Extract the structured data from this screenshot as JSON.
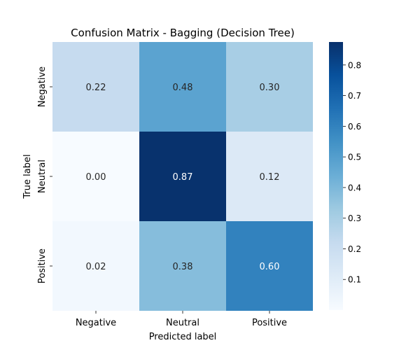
{
  "chart_data": {
    "type": "heatmap",
    "title": "Confusion Matrix - Bagging (Decision Tree)",
    "xlabel": "Predicted label",
    "ylabel": "True label",
    "x_categories": [
      "Negative",
      "Neutral",
      "Positive"
    ],
    "y_categories": [
      "Negative",
      "Neutral",
      "Positive"
    ],
    "values": [
      [
        0.22,
        0.48,
        0.3
      ],
      [
        0.0,
        0.87,
        0.12
      ],
      [
        0.02,
        0.38,
        0.6
      ]
    ],
    "value_labels": [
      [
        "0.22",
        "0.48",
        "0.30"
      ],
      [
        "0.00",
        "0.87",
        "0.12"
      ],
      [
        "0.02",
        "0.38",
        "0.60"
      ]
    ],
    "colormap": "Blues",
    "colorbar": {
      "range": [
        0.0,
        0.875
      ],
      "ticks": [
        0.1,
        0.2,
        0.3,
        0.4,
        0.5,
        0.6,
        0.7,
        0.8
      ],
      "tick_labels": [
        "0.1",
        "0.2",
        "0.3",
        "0.4",
        "0.5",
        "0.6",
        "0.7",
        "0.8"
      ]
    },
    "colors": {
      "low": "#f7fbff",
      "high": "#08306b",
      "text_dark": "#262626",
      "text_light": "#ffffff"
    },
    "grid": false,
    "legend": "colorbar-right"
  }
}
